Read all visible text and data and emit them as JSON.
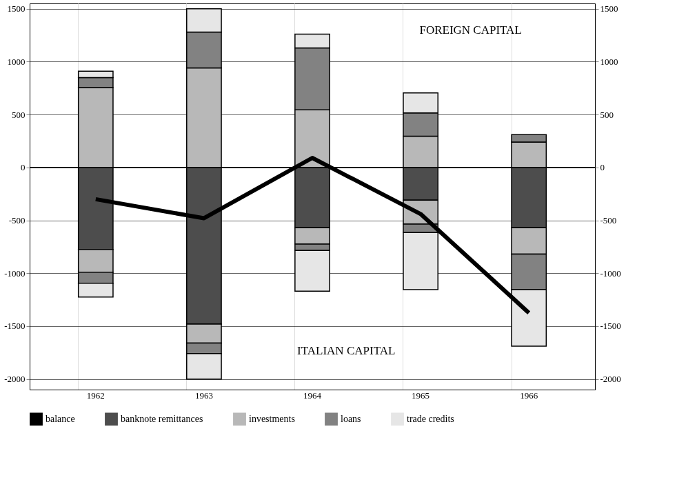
{
  "chart_data": {
    "type": "bar",
    "stacked": true,
    "categories": [
      "1962",
      "1963",
      "1964",
      "1965",
      "1966"
    ],
    "series": [
      {
        "name": "balance",
        "type": "line",
        "color": "#000000",
        "values": [
          -300,
          -480,
          90,
          -440,
          -1375
        ]
      },
      {
        "name": "banknote remittances",
        "color": "#4d4d4d",
        "values": [
          -775,
          -1480,
          -570,
          -310,
          -570
        ]
      },
      {
        "name": "investments",
        "color": "#b8b8b8",
        "values": [
          755,
          940,
          545,
          295,
          240
        ]
      },
      {
        "name": "loans",
        "color": "#828282",
        "values": [
          95,
          340,
          585,
          220,
          70
        ]
      },
      {
        "name": "trade credits",
        "color": "#e6e6e6",
        "values": [
          60,
          220,
          130,
          190,
          null
        ]
      },
      {
        "color": "#b8b8b8",
        "values": [
          -215,
          -180,
          -155,
          -225,
          -250
        ]
      },
      {
        "color": "#828282",
        "values": [
          -105,
          -100,
          -60,
          -80,
          -335
        ]
      },
      {
        "color": "#e6e6e6",
        "values": [
          -130,
          -240,
          -385,
          -540,
          -535
        ]
      }
    ],
    "ylim": [
      -2100,
      1550
    ],
    "yticks": [
      -2000,
      -1500,
      -1000,
      -500,
      0,
      500,
      1000,
      1500
    ],
    "y2lim": [
      -2100,
      1550
    ],
    "y2ticks": [
      -2000,
      -1500,
      -1000,
      -500,
      0,
      500,
      1000,
      1500
    ],
    "grid": true,
    "legend": "bottom",
    "annotations": [
      "FOREIGN CAPITAL",
      "ITALIAN CAPITAL"
    ]
  }
}
